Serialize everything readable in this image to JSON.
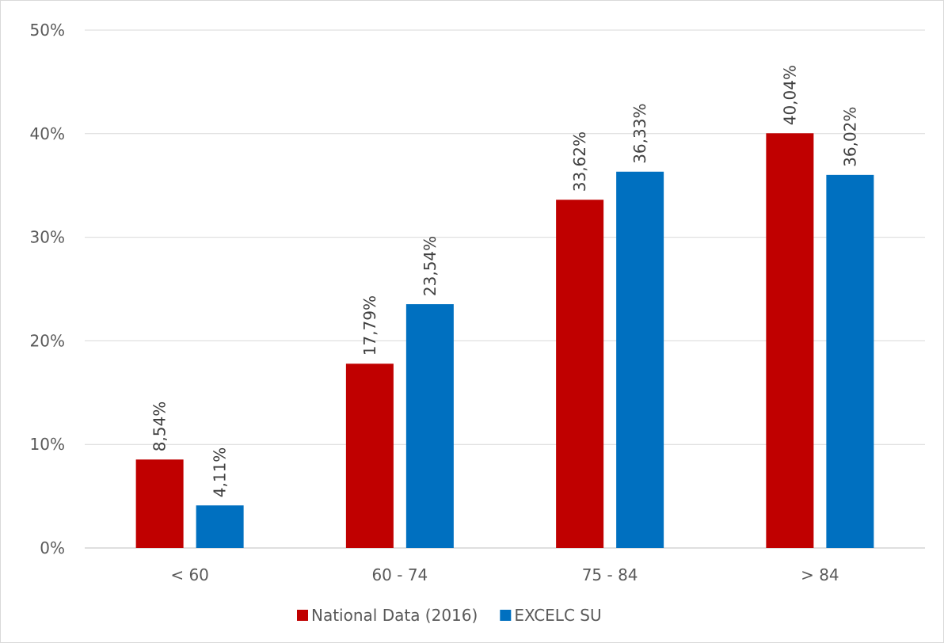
{
  "chart_data": {
    "type": "bar",
    "title": "",
    "xlabel": "",
    "ylabel": "",
    "categories": [
      "< 60",
      "60 - 74",
      "75 - 84",
      "> 84"
    ],
    "series": [
      {
        "name": "National Data (2016)",
        "color": "#c00000",
        "values": [
          8.54,
          17.79,
          33.62,
          40.04
        ],
        "labels": [
          "8,54%",
          "17,79%",
          "33,62%",
          "40,04%"
        ]
      },
      {
        "name": "EXCELC SU",
        "color": "#0070c0",
        "values": [
          4.11,
          23.54,
          36.33,
          36.02
        ],
        "labels": [
          "4,11%",
          "23,54%",
          "36,33%",
          "36,02%"
        ]
      }
    ],
    "ylim": [
      0,
      50
    ],
    "yticks": [
      0,
      10,
      20,
      30,
      40,
      50
    ],
    "ytick_labels": [
      "0%",
      "10%",
      "20%",
      "30%",
      "40%",
      "50%"
    ],
    "grid": true,
    "legend_position": "bottom"
  }
}
